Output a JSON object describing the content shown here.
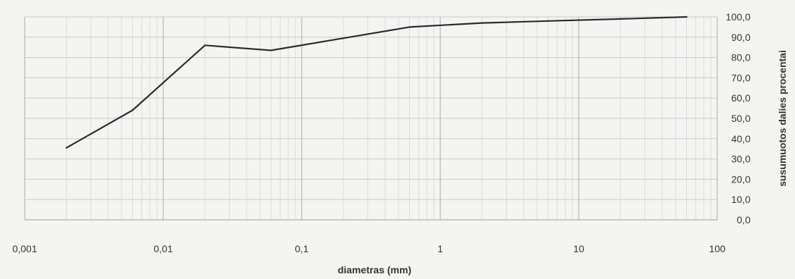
{
  "chart_data": {
    "type": "line",
    "title": "",
    "xlabel": "diametras (mm)",
    "ylabel": "susumuotos dalies procentai",
    "xscale": "log",
    "xlim": [
      0.001,
      100
    ],
    "ylim": [
      0,
      100
    ],
    "grid": true,
    "legend": "none",
    "x_ticks": [
      "0,001",
      "0,01",
      "0,1",
      "1",
      "10",
      "100"
    ],
    "y_ticks": [
      "0,0",
      "10,0",
      "20,0",
      "30,0",
      "40,0",
      "50,0",
      "60,0",
      "70,0",
      "80,0",
      "90,0",
      "100,0"
    ],
    "series": [
      {
        "x": [
          0.002,
          0.006,
          0.02,
          0.06,
          0.2,
          0.6,
          2,
          6,
          20,
          60
        ],
        "y": [
          35.5,
          54.0,
          86.0,
          83.5,
          89.5,
          95.0,
          97.0,
          98.0,
          99.0,
          100.0
        ]
      }
    ],
    "colors": {
      "line": "#2b2b2b",
      "grid": "#c9c9c9",
      "background": "#f4f4f2"
    }
  }
}
